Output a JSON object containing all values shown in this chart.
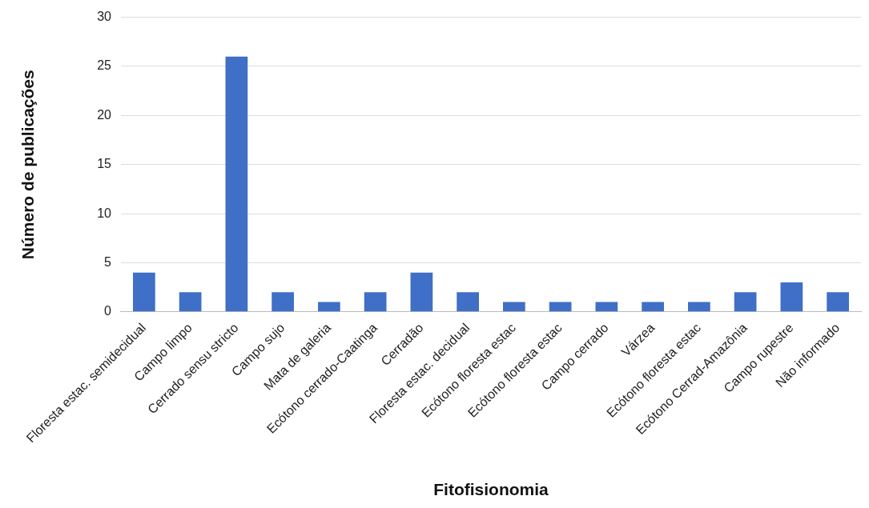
{
  "chart_data": {
    "type": "bar",
    "xlabel": "Fitofisionomia",
    "ylabel": "Número de publicações",
    "categories": [
      "Floresta estac. semidecidual",
      "Campo limpo",
      "Cerrado sensu stricto",
      "Campo sujo",
      "Mata de galeria",
      "Ecótono cerrado-Caatinga",
      "Cerradão",
      "Floresta estac. decidual",
      "Ecótono floresta estac",
      "Ecótono floresta estac",
      "Campo cerrado",
      "Várzea",
      "Ecótono floresta estac",
      "Ecótono Cerrad-Amazônia",
      "Campo rupestre",
      "Não informado"
    ],
    "values": [
      4,
      2,
      26,
      2,
      1,
      2,
      4,
      2,
      1,
      1,
      1,
      1,
      1,
      2,
      3,
      2
    ],
    "color": "#3f6fc6",
    "ylim": [
      0,
      30
    ],
    "yticks": [
      0,
      5,
      10,
      15,
      20,
      25,
      30
    ],
    "grid": "y",
    "legend": false
  }
}
